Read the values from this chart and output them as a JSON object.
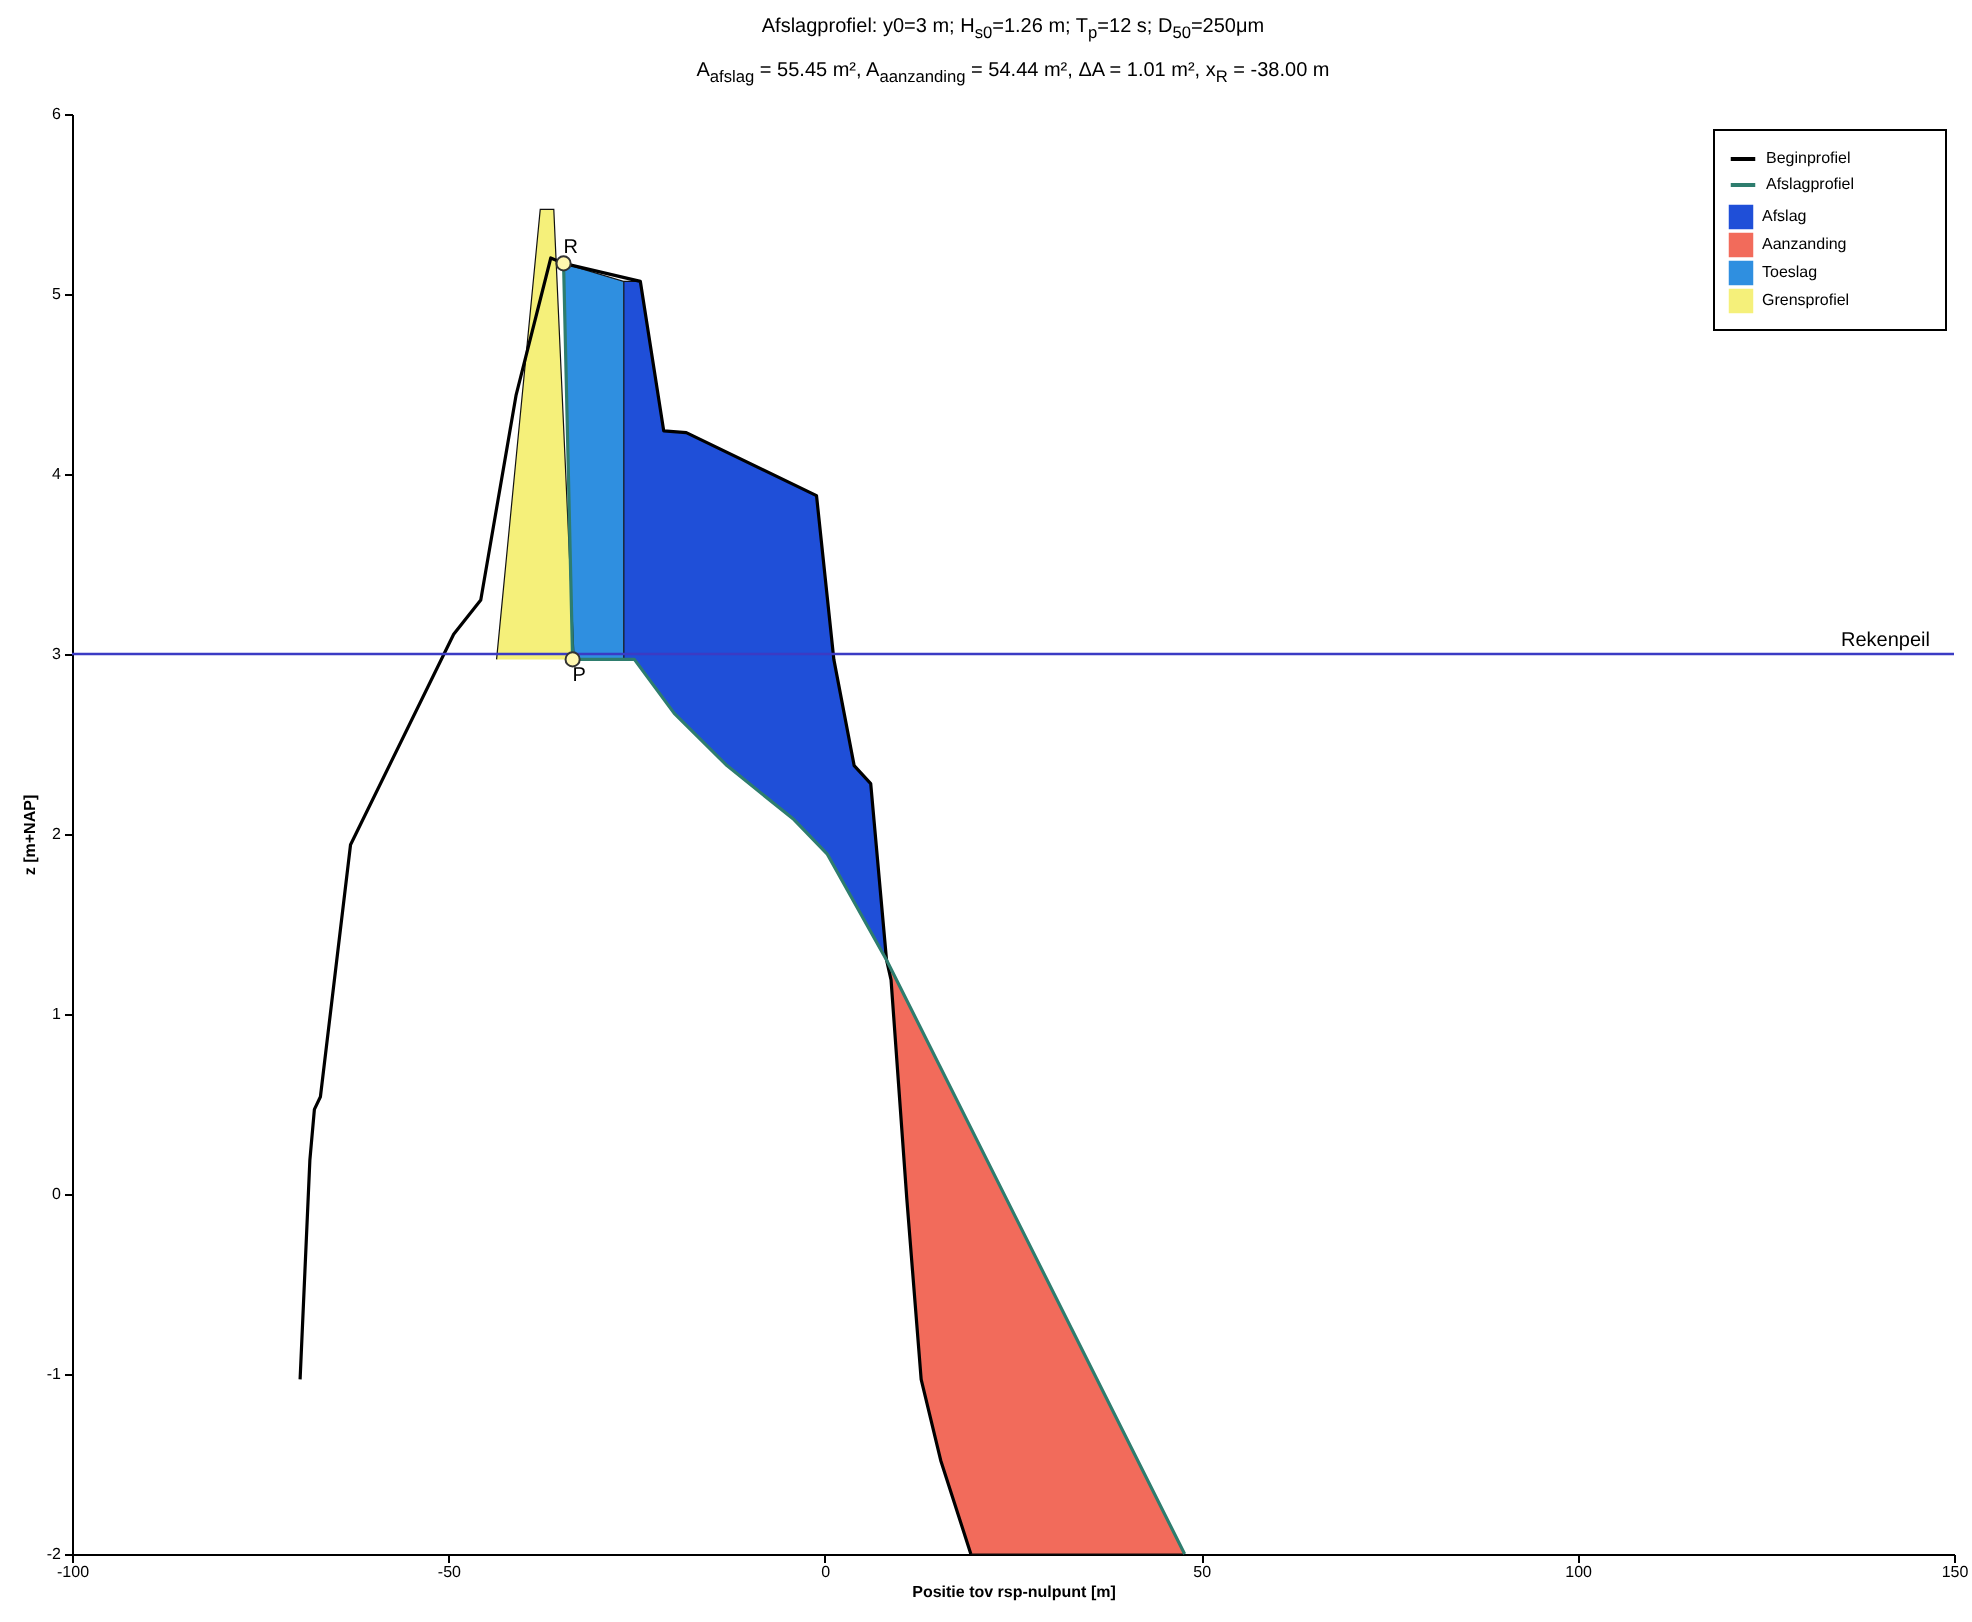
{
  "chart_data": {
    "type": "line",
    "title": "Afslagprofiel: y0=3 m; H$_{s0}$=1.26 m; T$_{p}$=12 s; D$_{50}$=250μm",
    "subtitle": "A$_{afslag}$ = 55.45 m², A$_{aanzanding}$ = 54.44 m², ΔA = 1.01 m², x$_{R}$ = -38.00 m",
    "xlabel": "Positie tov rsp-nulpunt [m]",
    "ylabel": "z [m+NAP]",
    "xlim": [
      -100,
      150
    ],
    "xticks": [
      -100,
      -50,
      0,
      50,
      100,
      150
    ],
    "ylim": [
      -2,
      6
    ],
    "yticks": [
      -2,
      -1,
      0,
      1,
      2,
      3,
      4,
      5,
      6
    ],
    "legend": "top right",
    "series": [
      {
        "name": "Beginprofiel",
        "color": "#000000",
        "x": [
          -69.7,
          -68.4,
          -67.8,
          -67,
          -63,
          -49.3,
          -45.7,
          -41,
          -36.4,
          -34.7,
          -24.5,
          -21.4,
          -18.4,
          -1.1,
          1.2,
          3.9,
          6.1,
          8.2,
          8.8,
          10.9,
          12.8,
          15.4,
          19.4
        ],
        "values": [
          -1.03,
          0.19,
          0.47,
          0.54,
          1.94,
          3.11,
          3.3,
          4.44,
          5.2,
          5.17,
          5.07,
          4.24,
          4.23,
          3.88,
          2.97,
          2.38,
          2.28,
          1.3,
          1.19,
          -0.03,
          -1.03,
          -1.48,
          -2
        ]
      },
      {
        "name": "Afslagprofiel",
        "color": "#2e7d6e",
        "x": [
          -34.7,
          -33.5,
          -25.3,
          -20,
          -13,
          -4.1,
          0.3,
          8.2,
          47.8
        ],
        "values": [
          5.17,
          2.97,
          2.97,
          2.67,
          2.38,
          2.08,
          1.89,
          1.3,
          -2
        ]
      },
      {
        "name": "Afslag",
        "type": "area",
        "color": "#1f4fd8",
        "x": [
          -26.7,
          -24.5,
          -21.4,
          -18.4,
          -1.1,
          1.2,
          3.9,
          6.1,
          8.2,
          0.3,
          -4.1,
          -13,
          -20,
          -25.3,
          -26.7
        ],
        "values": [
          5.07,
          5.07,
          4.24,
          4.23,
          3.88,
          2.97,
          2.38,
          2.28,
          1.3,
          1.89,
          2.08,
          2.38,
          2.67,
          2.97,
          2.97
        ]
      },
      {
        "name": "Aanzanding",
        "type": "area",
        "color": "#f26b5b",
        "x": [
          8.2,
          8.8,
          10.9,
          12.8,
          15.4,
          19.4,
          47.8
        ],
        "values": [
          1.3,
          1.19,
          -0.03,
          -1.03,
          -1.48,
          -2,
          -2
        ]
      },
      {
        "name": "Toeslag",
        "type": "area",
        "color": "#2f8fe0",
        "x": [
          -34.7,
          -26.7,
          -26.7,
          -33.5
        ],
        "values": [
          5.17,
          5.07,
          2.97,
          2.97
        ]
      },
      {
        "name": "Grensprofiel",
        "type": "area",
        "color": "#f5f07a",
        "x": [
          -43.6,
          -37.8,
          -36,
          -33.3
        ],
        "values": [
          2.97,
          5.47,
          5.47,
          2.97
        ]
      },
      {
        "type": "scatter",
        "color": "#fff7b0",
        "marker": "circle",
        "x": [
          -34.7,
          -33.5
        ],
        "values": [
          5.17,
          2.97
        ]
      }
    ],
    "ref_lines": [
      {
        "axis": "y",
        "value": 3,
        "label": "Rekenpeil",
        "color": "#3b3bc4"
      }
    ],
    "annotations": [
      {
        "text": "R",
        "x": -34.7,
        "y": 5.17
      },
      {
        "text": "P",
        "x": -33.5,
        "y": 2.97
      }
    ]
  }
}
